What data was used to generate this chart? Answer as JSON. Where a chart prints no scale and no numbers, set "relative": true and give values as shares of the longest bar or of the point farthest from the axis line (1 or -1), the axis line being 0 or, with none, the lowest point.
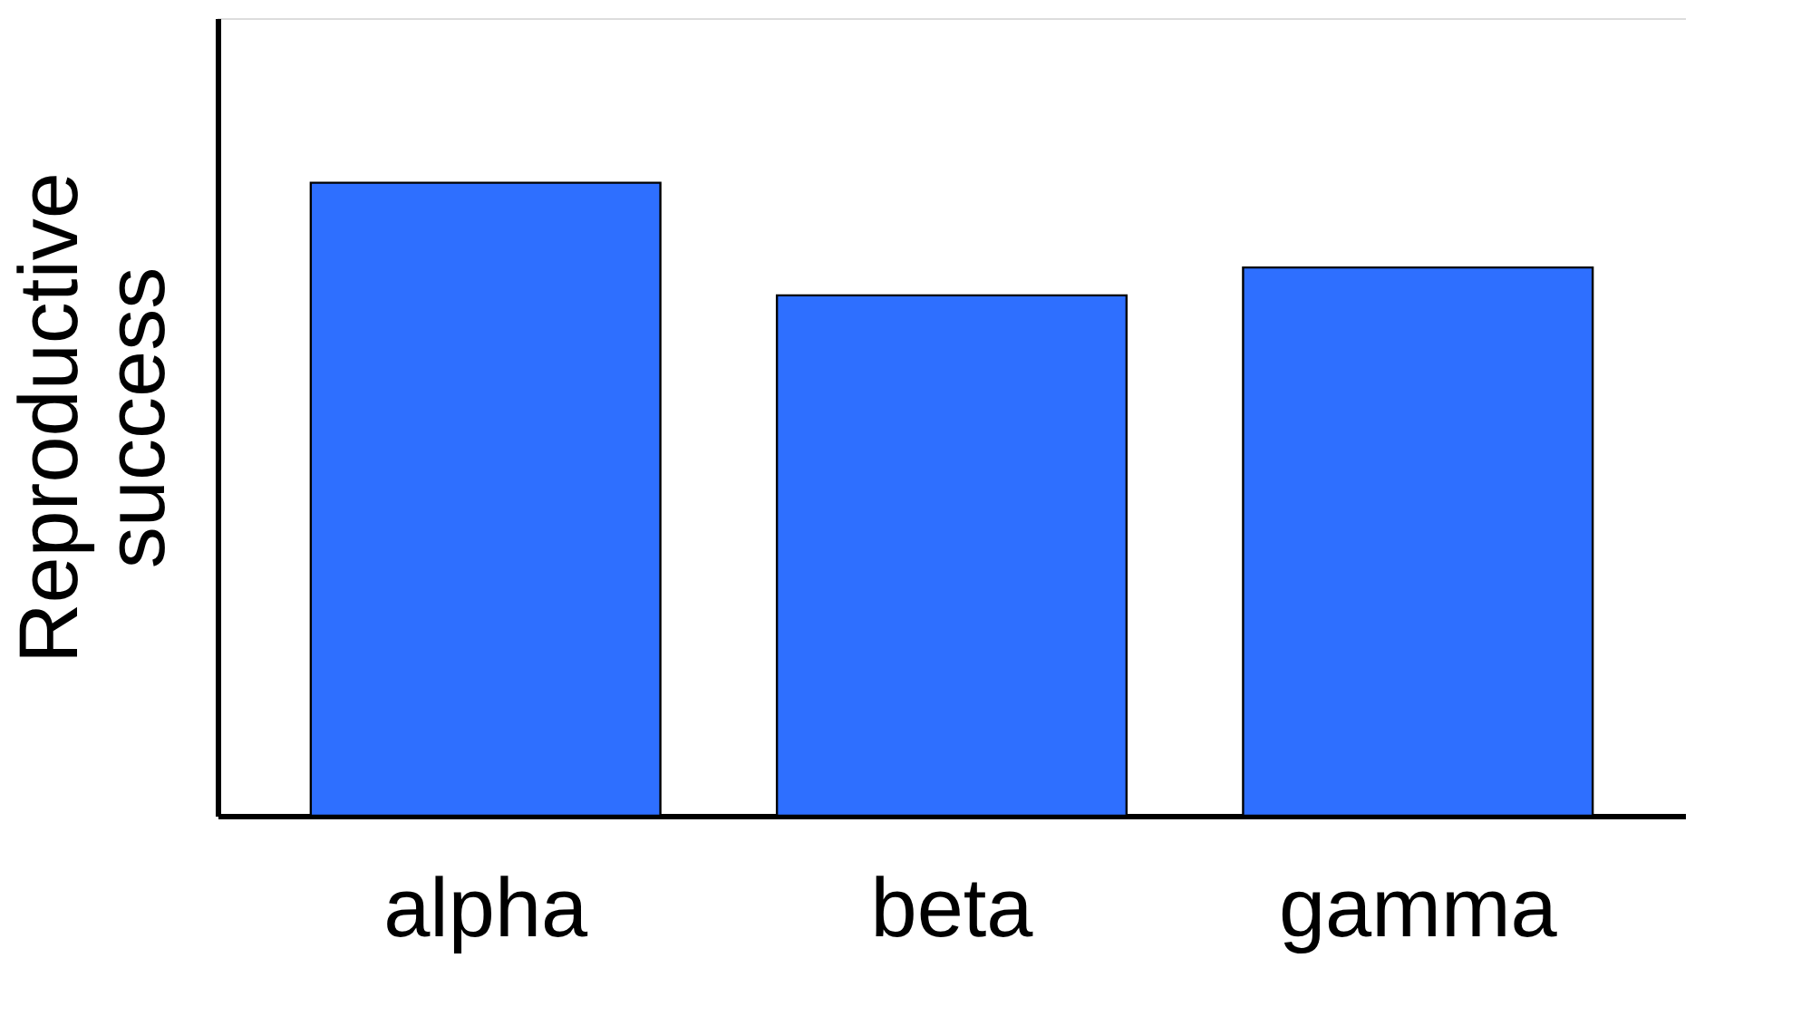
{
  "chart_data": {
    "type": "bar",
    "ylabel": "Reproductive\nsuccess",
    "categories": [
      "alpha",
      "beta",
      "gamma"
    ],
    "values": [
      1,
      0.822,
      0.866
    ],
    "color": "#2e6fff",
    "relative": true,
    "grid": false
  }
}
